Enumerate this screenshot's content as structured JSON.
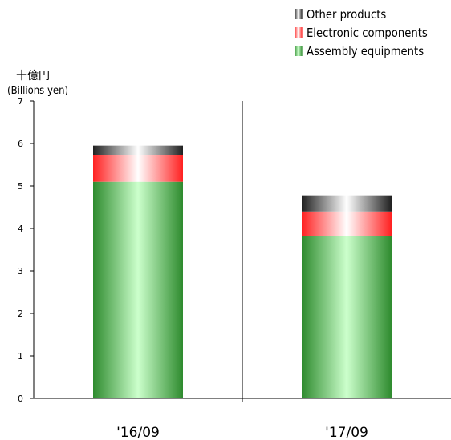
{
  "chart_data": {
    "type": "bar",
    "stacked": true,
    "categories": [
      "'16/09",
      "'17/09"
    ],
    "series": [
      {
        "name": "Assembly equipments",
        "values": [
          5.1,
          3.83
        ],
        "color": "#2e8b2e"
      },
      {
        "name": "Electronic components",
        "values": [
          0.62,
          0.57
        ],
        "color": "#ff2020"
      },
      {
        "name": "Other products",
        "values": [
          0.23,
          0.38
        ],
        "color": "#202020"
      }
    ],
    "legend_order": [
      "Other products",
      "Electronic components",
      "Assembly equipments"
    ],
    "ylabel_jp": "十億円",
    "ylabel_en": "(Billions yen)",
    "ylim": [
      0,
      7
    ],
    "yticks": [
      "0",
      "1",
      "2",
      "3",
      "4",
      "5",
      "6",
      "7"
    ],
    "legend_position": "top-right",
    "grid": false
  }
}
